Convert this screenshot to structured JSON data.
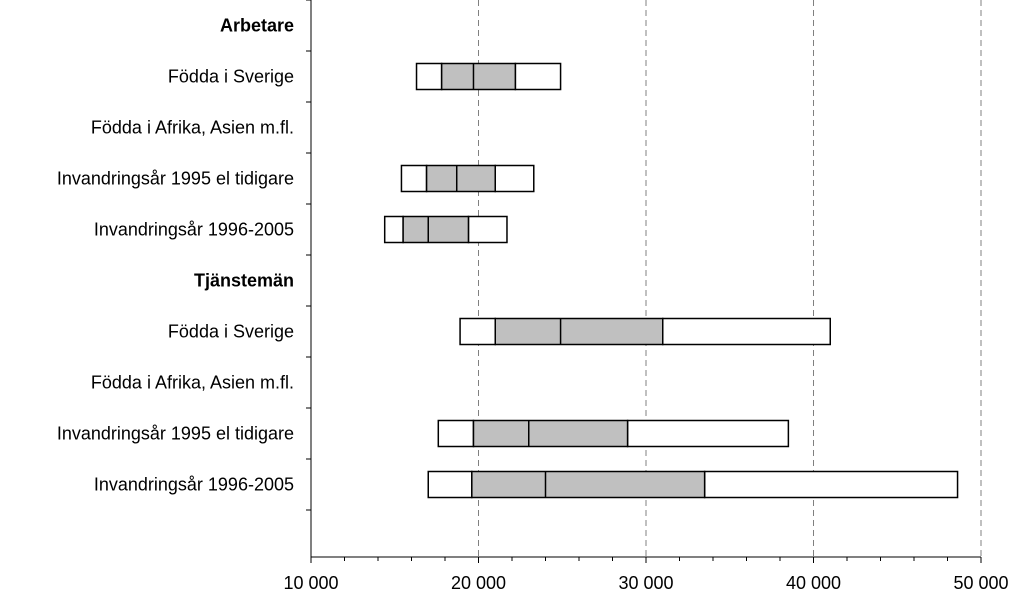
{
  "chart_data": {
    "type": "boxplot",
    "xlim": [
      10000,
      50000
    ],
    "x_ticks": [
      "10 000",
      "20 000",
      "30 000",
      "40 000",
      "50 000"
    ],
    "x_tick_values": [
      10000,
      20000,
      30000,
      40000,
      50000
    ],
    "grid": "vertical dashed",
    "rows": [
      {
        "label": "Arbetare",
        "header": true
      },
      {
        "label": "Födda i Sverige",
        "p10": 16300,
        "q1": 17800,
        "median": 19700,
        "q3": 22200,
        "p90": 24900
      },
      {
        "label": "Födda i Afrika, Asien m.fl.",
        "p10": null,
        "q1": null,
        "median": null,
        "q3": null,
        "p90": null
      },
      {
        "label": "Invandringsår 1995 el tidigare",
        "p10": 15400,
        "q1": 16900,
        "median": 18700,
        "q3": 21000,
        "p90": 23300
      },
      {
        "label": "Invandringsår 1996-2005",
        "p10": 14400,
        "q1": 15500,
        "median": 17000,
        "q3": 19400,
        "p90": 21700
      },
      {
        "label": "Tjänstemän",
        "header": true
      },
      {
        "label": "Födda i Sverige",
        "p10": 18900,
        "q1": 21000,
        "median": 24900,
        "q3": 31000,
        "p90": 41000
      },
      {
        "label": "Födda i Afrika, Asien m.fl.",
        "p10": null,
        "q1": null,
        "median": null,
        "q3": null,
        "p90": null
      },
      {
        "label": "Invandringsår 1995 el tidigare",
        "p10": 17600,
        "q1": 19700,
        "median": 23000,
        "q3": 28900,
        "p90": 38500
      },
      {
        "label": "Invandringsår 1996-2005",
        "p10": 17000,
        "q1": 19600,
        "median": 24000,
        "q3": 33500,
        "p90": 48600
      }
    ],
    "colors": {
      "iqr": "#c0c0c0",
      "outer": "#ffffff",
      "stroke": "#000000",
      "grid": "#808080"
    }
  }
}
